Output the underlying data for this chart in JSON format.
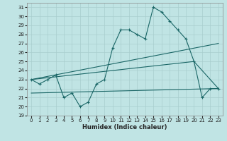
{
  "background_color": "#c0e4e4",
  "grid_color": "#a8cece",
  "line_color": "#1a6666",
  "xlabel": "Humidex (Indice chaleur)",
  "xlim": [
    -0.5,
    23.5
  ],
  "ylim": [
    19,
    31.5
  ],
  "yticks": [
    19,
    20,
    21,
    22,
    23,
    24,
    25,
    26,
    27,
    28,
    29,
    30,
    31
  ],
  "xticks": [
    0,
    1,
    2,
    3,
    4,
    5,
    6,
    7,
    8,
    9,
    10,
    11,
    12,
    13,
    14,
    15,
    16,
    17,
    18,
    19,
    20,
    21,
    22,
    23
  ],
  "series": {
    "zigzag_x": [
      0,
      1,
      2,
      3,
      4,
      5,
      6,
      7,
      8,
      9,
      10,
      11,
      12,
      13,
      14,
      15,
      16,
      17,
      18,
      19,
      20,
      21,
      22,
      23
    ],
    "zigzag_y": [
      23,
      22.5,
      23,
      23.5,
      21,
      21.5,
      20,
      20.5,
      22.5,
      23,
      26.5,
      28.5,
      28.5,
      28,
      27.5,
      31,
      30.5,
      29.5,
      28.5,
      27.5,
      25,
      21,
      22,
      22
    ],
    "upper_trend_x": [
      0,
      23
    ],
    "upper_trend_y": [
      23,
      27
    ],
    "mid_trend_x": [
      0,
      20,
      23
    ],
    "mid_trend_y": [
      23,
      25,
      22
    ],
    "lower_trend_x": [
      0,
      23
    ],
    "lower_trend_y": [
      21.5,
      22
    ]
  }
}
